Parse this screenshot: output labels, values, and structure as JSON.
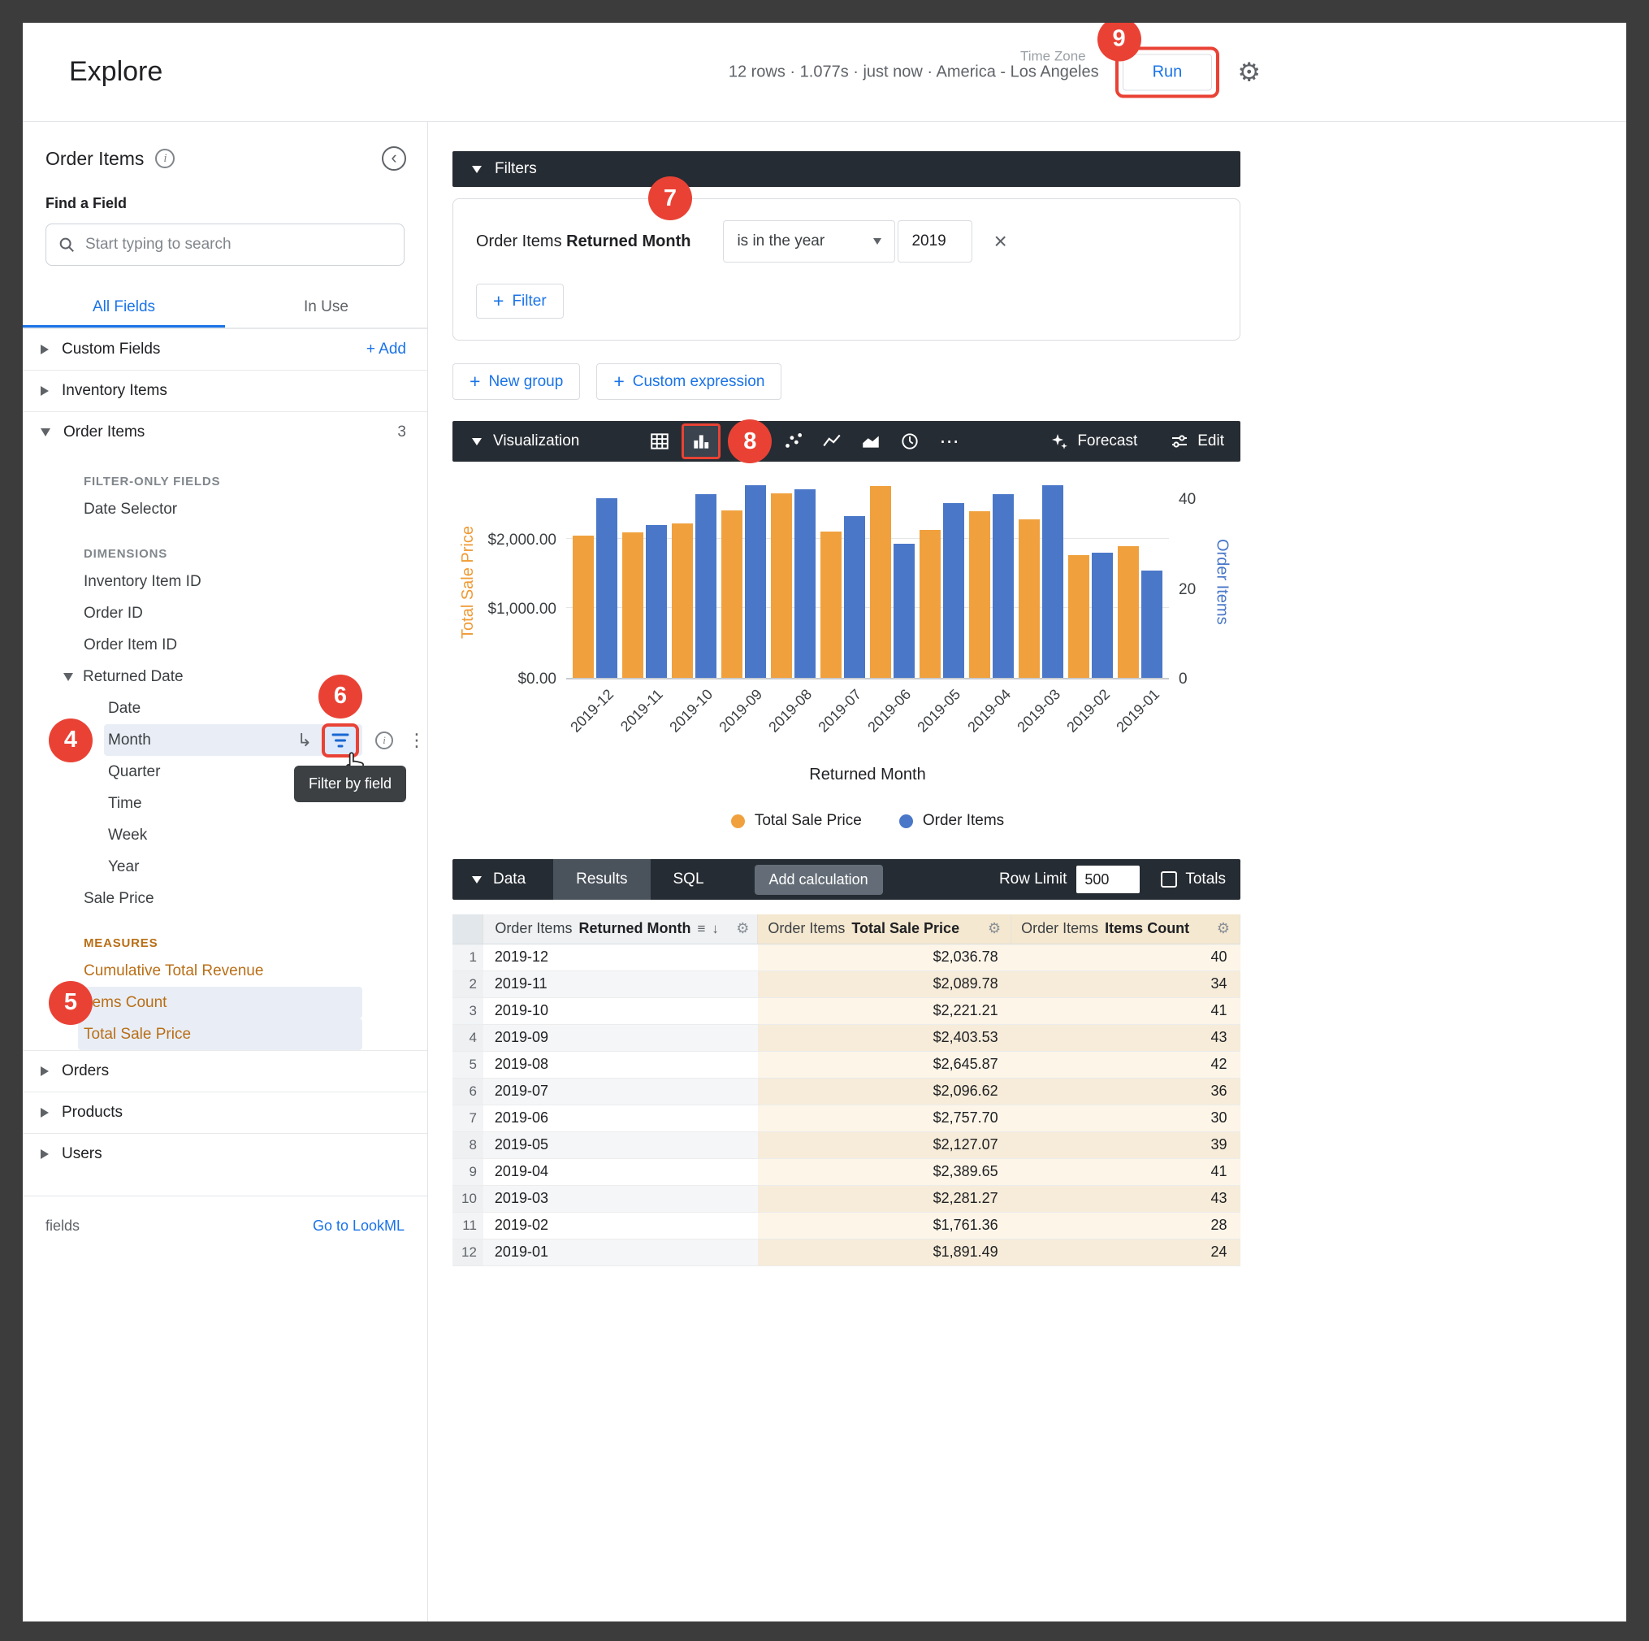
{
  "icons": {
    "close": "×",
    "pivot": "↳",
    "dots": "⋮",
    "gear": "⚙",
    "sort_lines": "≡",
    "sort_arrow": "↓",
    "plus": "+",
    "info": "i",
    "collapse": "‹",
    "ellipsis": "⋯"
  },
  "colors": {
    "accent_blue": "#1a73e8",
    "bar_orange": "#f0a13e",
    "bar_blue": "#4a77c8",
    "callout_red": "#e94235",
    "measure_orange": "#b96e16",
    "dark_bar": "#262c33"
  },
  "badges": {
    "b4": "4",
    "b5": "5",
    "b6": "6",
    "b7": "7",
    "b8": "8",
    "b9": "9"
  },
  "header": {
    "title": "Explore",
    "stats": "12 rows · 1.077s · just now · America - Los Angeles",
    "time_zone_label": "Time Zone",
    "run_label": "Run"
  },
  "sidebar": {
    "title": "Order Items",
    "find_label": "Find a Field",
    "search_placeholder": "Start typing to search",
    "tabs": [
      {
        "label": "All Fields",
        "active": true
      },
      {
        "label": "In Use",
        "active": false
      }
    ],
    "tooltip": "Filter by field",
    "footer_left": "fields",
    "footer_link": "Go to LookML",
    "tree": [
      {
        "label": "Custom Fields",
        "kind": "top",
        "caret": "right",
        "aux": "+ Add",
        "aux_style": "link"
      },
      {
        "label": "Inventory Items",
        "kind": "top",
        "caret": "right"
      },
      {
        "label": "Order Items",
        "kind": "top",
        "caret": "down",
        "aux": "3",
        "aux_style": "count"
      },
      {
        "label": "FILTER-ONLY FIELDS",
        "kind": "subhead"
      },
      {
        "label": "Date Selector",
        "kind": "field",
        "lvl": 1
      },
      {
        "label": "DIMENSIONS",
        "kind": "subhead"
      },
      {
        "label": "Inventory Item ID",
        "kind": "field",
        "lvl": 1
      },
      {
        "label": "Order ID",
        "kind": "field",
        "lvl": 1
      },
      {
        "label": "Order Item ID",
        "kind": "field",
        "lvl": 1
      },
      {
        "label": "Returned Date",
        "kind": "group",
        "caret": "down",
        "lvl": 1
      },
      {
        "label": "Date",
        "kind": "field",
        "lvl": 2
      },
      {
        "label": "Month",
        "kind": "field",
        "lvl": 2,
        "highlight": true,
        "badge": "4",
        "month_row": true
      },
      {
        "label": "Quarter",
        "kind": "field",
        "lvl": 2
      },
      {
        "label": "Time",
        "kind": "field",
        "lvl": 2
      },
      {
        "label": "Week",
        "kind": "field",
        "lvl": 2
      },
      {
        "label": "Year",
        "kind": "field",
        "lvl": 2
      },
      {
        "label": "Sale Price",
        "kind": "field",
        "lvl": 1
      },
      {
        "label": "MEASURES",
        "kind": "subhead",
        "measure": true
      },
      {
        "label": "Cumulative Total Revenue",
        "kind": "field",
        "lvl": 1,
        "measure": true
      },
      {
        "label": "Items Count",
        "kind": "field",
        "lvl": 1,
        "measure": true,
        "highlight": true,
        "badge": "5"
      },
      {
        "label": "Total Sale Price",
        "kind": "field",
        "lvl": 1,
        "measure": true,
        "highlight": true
      },
      {
        "label": "Orders",
        "kind": "top",
        "caret": "right"
      },
      {
        "label": "Products",
        "kind": "top",
        "caret": "right"
      },
      {
        "label": "Users",
        "kind": "top",
        "caret": "right"
      }
    ]
  },
  "filters": {
    "header": "Filters",
    "field_prefix": "Order Items",
    "field_name": "Returned Month",
    "condition": "is in the year",
    "value": "2019",
    "add_filter_label": "Filter",
    "new_group_label": "New group",
    "custom_expression_label": "Custom expression"
  },
  "visualization": {
    "header": "Visualization",
    "forecast_label": "Forecast",
    "edit_label": "Edit"
  },
  "chart_data": {
    "type": "bar",
    "title": "",
    "categories": [
      "2019-12",
      "2019-11",
      "2019-10",
      "2019-09",
      "2019-08",
      "2019-07",
      "2019-06",
      "2019-05",
      "2019-04",
      "2019-03",
      "2019-02",
      "2019-01"
    ],
    "series": [
      {
        "name": "Total Sale Price",
        "axis": "left",
        "color": "#f0a13e",
        "values": [
          2036.78,
          2089.78,
          2221.21,
          2403.53,
          2645.87,
          2096.62,
          2757.7,
          2127.07,
          2389.65,
          2281.27,
          1761.36,
          1891.49
        ]
      },
      {
        "name": "Order Items",
        "axis": "right",
        "color": "#4a77c8",
        "values": [
          40,
          34,
          41,
          43,
          42,
          36,
          30,
          39,
          41,
          43,
          28,
          24
        ]
      }
    ],
    "left_axis": {
      "title": "Total Sale Price",
      "max": 2800,
      "grid_values": [
        2000,
        1000
      ],
      "ticks": [
        {
          "label": "$2,000.00",
          "value": 2000
        },
        {
          "label": "$1,000.00",
          "value": 1000
        },
        {
          "label": "$0.00",
          "value": 0
        }
      ]
    },
    "right_axis": {
      "title": "Order Items",
      "max": 43.5,
      "ticks": [
        {
          "label": "40",
          "value": 40
        },
        {
          "label": "20",
          "value": 20
        },
        {
          "label": "0",
          "value": 0
        }
      ]
    },
    "xlabel": "Returned Month",
    "legend_position": "bottom",
    "legend": [
      {
        "label": "Total Sale Price",
        "color": "#f0a13e"
      },
      {
        "label": "Order Items",
        "color": "#4a77c8"
      }
    ]
  },
  "data_section": {
    "header": "Data",
    "results_tab": "Results",
    "sql_tab": "SQL",
    "add_calculation_label": "Add calculation",
    "row_limit_label": "Row Limit",
    "row_limit_value": "500",
    "totals_label": "Totals"
  },
  "table": {
    "columns": [
      {
        "prefix": "Order Items",
        "name": "Returned Month"
      },
      {
        "prefix": "Order Items",
        "name": "Total Sale Price"
      },
      {
        "prefix": "Order Items",
        "name": "Items Count"
      }
    ],
    "rows": [
      {
        "n": "1",
        "month": "2019-12",
        "price": "$2,036.78",
        "count": "40"
      },
      {
        "n": "2",
        "month": "2019-11",
        "price": "$2,089.78",
        "count": "34"
      },
      {
        "n": "3",
        "month": "2019-10",
        "price": "$2,221.21",
        "count": "41"
      },
      {
        "n": "4",
        "month": "2019-09",
        "price": "$2,403.53",
        "count": "43"
      },
      {
        "n": "5",
        "month": "2019-08",
        "price": "$2,645.87",
        "count": "42"
      },
      {
        "n": "6",
        "month": "2019-07",
        "price": "$2,096.62",
        "count": "36"
      },
      {
        "n": "7",
        "month": "2019-06",
        "price": "$2,757.70",
        "count": "30"
      },
      {
        "n": "8",
        "month": "2019-05",
        "price": "$2,127.07",
        "count": "39"
      },
      {
        "n": "9",
        "month": "2019-04",
        "price": "$2,389.65",
        "count": "41"
      },
      {
        "n": "10",
        "month": "2019-03",
        "price": "$2,281.27",
        "count": "43"
      },
      {
        "n": "11",
        "month": "2019-02",
        "price": "$1,761.36",
        "count": "28"
      },
      {
        "n": "12",
        "month": "2019-01",
        "price": "$1,891.49",
        "count": "24"
      }
    ]
  }
}
